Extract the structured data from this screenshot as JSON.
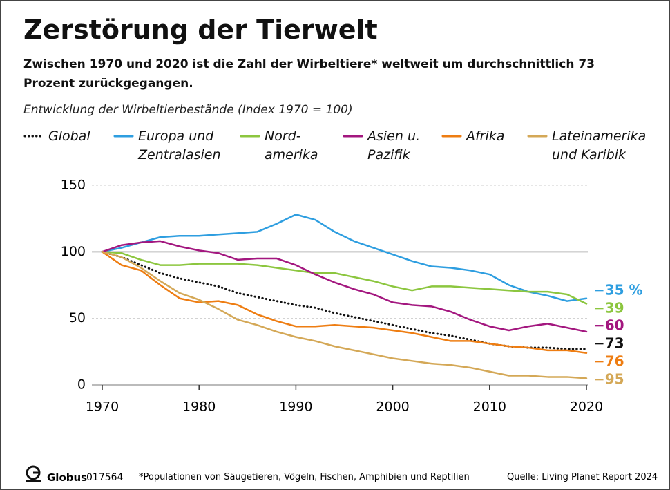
{
  "chart_data": {
    "type": "line",
    "title": "Zerstörung der Tierwelt",
    "subtitle": "Zwischen 1970 und 2020 ist die Zahl der Wirbeltiere* weltweit um durchschnittlich 73 Prozent zurückgegangen.",
    "axis_caption": "Entwicklung der Wirbeltierbestände (Index 1970 = 100)",
    "x": [
      1970,
      1972,
      1974,
      1976,
      1978,
      1980,
      1982,
      1984,
      1986,
      1988,
      1990,
      1992,
      1994,
      1996,
      1998,
      2000,
      2002,
      2004,
      2006,
      2008,
      2010,
      2012,
      2014,
      2016,
      2018,
      2020
    ],
    "xlim": [
      1970,
      2020
    ],
    "xticks": [
      1970,
      1980,
      1990,
      2000,
      2010,
      2020
    ],
    "ylim": [
      0,
      150
    ],
    "yticks": [
      0,
      50,
      100,
      150
    ],
    "grid": true,
    "series": [
      {
        "name": "Global",
        "color": "#111111",
        "dotted": true,
        "change_label": "−73",
        "values": [
          100,
          96,
          90,
          84,
          80,
          77,
          74,
          69,
          66,
          63,
          60,
          58,
          54,
          51,
          48,
          45,
          42,
          39,
          37,
          34,
          31,
          29,
          28,
          28,
          27,
          27
        ]
      },
      {
        "name": "Europa und\nZentralasien",
        "color": "#2e9ee0",
        "change_label": "−35 %",
        "values": [
          100,
          103,
          107,
          111,
          112,
          112,
          113,
          114,
          115,
          121,
          128,
          124,
          115,
          108,
          103,
          98,
          93,
          89,
          88,
          86,
          83,
          75,
          70,
          67,
          63,
          65
        ]
      },
      {
        "name": "Nord-\namerika",
        "color": "#8cc63f",
        "change_label": "−39",
        "values": [
          100,
          99,
          94,
          90,
          90,
          91,
          91,
          91,
          90,
          88,
          86,
          84,
          84,
          81,
          78,
          74,
          71,
          74,
          74,
          73,
          72,
          71,
          70,
          70,
          68,
          61
        ]
      },
      {
        "name": "Asien u.\nPazifik",
        "color": "#a3177f",
        "change_label": "−60",
        "values": [
          100,
          105,
          107,
          108,
          104,
          101,
          99,
          94,
          95,
          95,
          90,
          83,
          77,
          72,
          68,
          62,
          60,
          59,
          55,
          49,
          44,
          41,
          44,
          46,
          43,
          40
        ]
      },
      {
        "name": "Afrika",
        "color": "#ee7d12",
        "change_label": "−76",
        "values": [
          100,
          90,
          86,
          75,
          65,
          62,
          63,
          60,
          53,
          48,
          44,
          44,
          45,
          44,
          43,
          41,
          39,
          36,
          33,
          33,
          31,
          29,
          28,
          26,
          26,
          24
        ]
      },
      {
        "name": "Lateinamerika\nund Karibik",
        "color": "#d4a857",
        "change_label": "−95",
        "values": [
          100,
          96,
          88,
          78,
          69,
          64,
          57,
          49,
          45,
          40,
          36,
          33,
          29,
          26,
          23,
          20,
          18,
          16,
          15,
          13,
          10,
          7,
          7,
          6,
          6,
          5
        ]
      }
    ],
    "brand": "Globus",
    "code": "017564",
    "footnote": "*Populationen von Säugetieren, Vögeln, Fischen, Amphibien und Reptilien",
    "source": "Quelle: Living Planet Report 2024"
  }
}
